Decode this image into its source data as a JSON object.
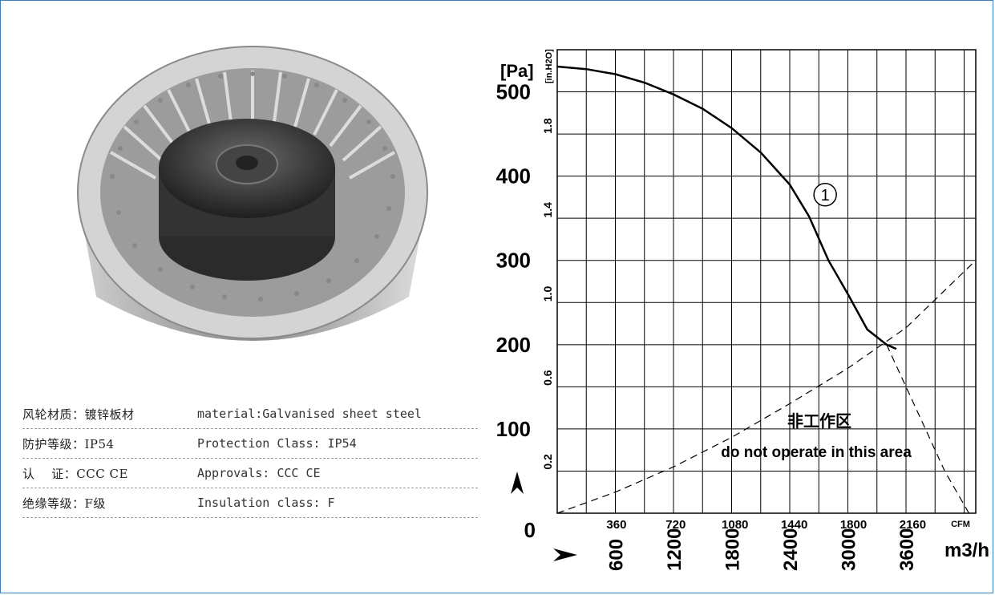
{
  "specs": [
    {
      "cn": "风轮材质：镀锌板材",
      "en": "material:Galvanised sheet steel"
    },
    {
      "cn": "防护等级：IP54",
      "en": "Protection Class: IP54"
    },
    {
      "cn": "认　 证：CCC CE",
      "en": "Approvals: CCC  CE"
    },
    {
      "cn": "绝缘等级：F级",
      "en": "Insulation class: F"
    }
  ],
  "chart_data": {
    "type": "line",
    "title": "",
    "y_unit": "[Pa]",
    "y2_unit": "[in.H2O]",
    "x_unit": "m3/h",
    "x2_unit": "CFM",
    "xlim": [
      0,
      4320
    ],
    "ylim": [
      0,
      550
    ],
    "grid": true,
    "y_ticks": [
      0,
      100,
      200,
      300,
      400,
      500
    ],
    "y_tick_labels": [
      "0",
      "100",
      "200",
      "300",
      "400",
      "500"
    ],
    "y2_ticks": [
      0.2,
      0.6,
      1.0,
      1.4,
      1.8
    ],
    "y2_tick_labels": [
      "0.2",
      "0.6",
      "1.0",
      "1.4",
      "1.8"
    ],
    "x_ticks": [
      600,
      1200,
      1800,
      2400,
      3000,
      3600
    ],
    "x_tick_labels": [
      "600",
      "1200",
      "1800",
      "2400",
      "3000",
      "3600"
    ],
    "x2_ticks": [
      360,
      720,
      1080,
      1440,
      1800,
      2160
    ],
    "x2_tick_labels": [
      "360",
      "720",
      "1080",
      "1440",
      "1800",
      "2160"
    ],
    "curve_label": "1",
    "region_label_cn": "非工作区",
    "region_label_en": "do not operate in this area",
    "series": [
      {
        "style": "solid",
        "x": [
          0,
          300,
          600,
          900,
          1200,
          1500,
          1800,
          2100,
          2400,
          2600,
          2800,
          3000,
          3200,
          3400,
          3500
        ],
        "y": [
          530,
          527,
          521,
          511,
          497,
          480,
          457,
          428,
          390,
          352,
          300,
          260,
          218,
          200,
          195
        ]
      },
      {
        "style": "dashed",
        "x": [
          3400,
          3600,
          3800,
          4000,
          4250
        ],
        "y": [
          200,
          150,
          100,
          50,
          0
        ]
      },
      {
        "style": "dashed",
        "x": [
          0,
          600,
          1200,
          1800,
          2400,
          3000,
          3600,
          4320
        ],
        "y": [
          0,
          25,
          55,
          90,
          130,
          172,
          220,
          300
        ]
      }
    ]
  }
}
